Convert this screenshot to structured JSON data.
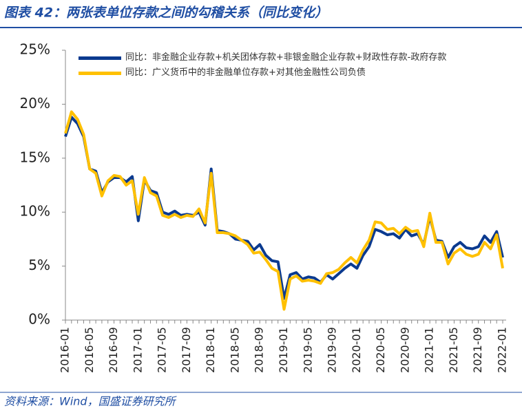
{
  "chart_data": {
    "type": "line",
    "title": "图表 42：两张表单位存款之间的勾稽关系（同比变化）",
    "source": "资料来源：Wind，国盛证券研究所",
    "categories": [
      "2016-01",
      null,
      null,
      null,
      "2016-05",
      null,
      null,
      null,
      "2016-09",
      null,
      null,
      null,
      "2017-01",
      null,
      null,
      null,
      "2017-05",
      null,
      null,
      null,
      "2017-09",
      null,
      null,
      null,
      "2018-01",
      null,
      null,
      null,
      "2018-05",
      null,
      null,
      null,
      "2018-09",
      null,
      null,
      null,
      "2019-01",
      null,
      null,
      null,
      "2019-05",
      null,
      null,
      null,
      "2019-09",
      null,
      null,
      null,
      "2020-01",
      null,
      null,
      null,
      "2020-05",
      null,
      null,
      null,
      "2020-09",
      null,
      null,
      null,
      "2021-01",
      null,
      null,
      null,
      "2021-05",
      null,
      null,
      null,
      "2021-09",
      null,
      null,
      null,
      "2022-01"
    ],
    "series": [
      {
        "name": "同比：非金融企业存款+机关团体存款+非银金融企业存款+财政性存款-政府存款",
        "color": "#0b3a8f",
        "values": [
          17.0,
          18.8,
          18.2,
          17.0,
          14.0,
          13.8,
          11.8,
          12.8,
          13.2,
          13.2,
          12.8,
          13.3,
          9.2,
          13.0,
          12.0,
          11.8,
          10.0,
          9.8,
          10.1,
          9.7,
          9.8,
          9.7,
          10.0,
          8.8,
          14.0,
          8.3,
          8.2,
          8.0,
          7.5,
          7.4,
          7.3,
          6.5,
          7.0,
          6.0,
          5.5,
          5.4,
          2.0,
          4.2,
          4.4,
          3.8,
          4.0,
          3.9,
          3.5,
          4.2,
          3.8,
          4.3,
          4.8,
          5.2,
          4.8,
          6.0,
          6.8,
          8.4,
          8.2,
          7.9,
          8.0,
          7.6,
          8.4,
          7.8,
          8.0,
          7.0,
          9.6,
          7.4,
          7.3,
          5.8,
          6.8,
          7.2,
          6.7,
          6.6,
          6.8,
          7.8,
          7.2,
          8.2,
          5.8
        ]
      },
      {
        "name": "同比：广义货币中的非金融单位存款+对其他金融性公司负债",
        "color": "#ffc000",
        "values": [
          17.3,
          19.3,
          18.6,
          17.2,
          14.0,
          13.6,
          11.5,
          12.9,
          13.4,
          13.3,
          12.5,
          12.9,
          9.8,
          13.2,
          11.8,
          11.5,
          9.7,
          9.5,
          9.8,
          9.5,
          9.7,
          9.6,
          10.3,
          9.0,
          13.6,
          8.1,
          8.1,
          8.0,
          7.8,
          7.4,
          7.0,
          6.2,
          6.3,
          5.6,
          4.8,
          4.5,
          1.0,
          3.8,
          4.1,
          3.6,
          3.7,
          3.6,
          3.4,
          4.3,
          4.4,
          4.7,
          5.3,
          5.8,
          5.3,
          6.5,
          7.4,
          9.1,
          9.0,
          8.4,
          8.5,
          8.0,
          8.6,
          8.2,
          8.3,
          6.8,
          9.9,
          7.2,
          7.2,
          5.2,
          6.2,
          6.6,
          6.1,
          5.9,
          6.1,
          7.2,
          6.6,
          7.9,
          4.8
        ]
      }
    ],
    "ylim": [
      0,
      25
    ],
    "yticks": [
      {
        "value": 0,
        "label": "0%"
      },
      {
        "value": 5,
        "label": "5%"
      },
      {
        "value": 10,
        "label": "10%"
      },
      {
        "value": 15,
        "label": "15%"
      },
      {
        "value": 20,
        "label": "20%"
      },
      {
        "value": 25,
        "label": "25%"
      }
    ],
    "legend": "upper left"
  }
}
